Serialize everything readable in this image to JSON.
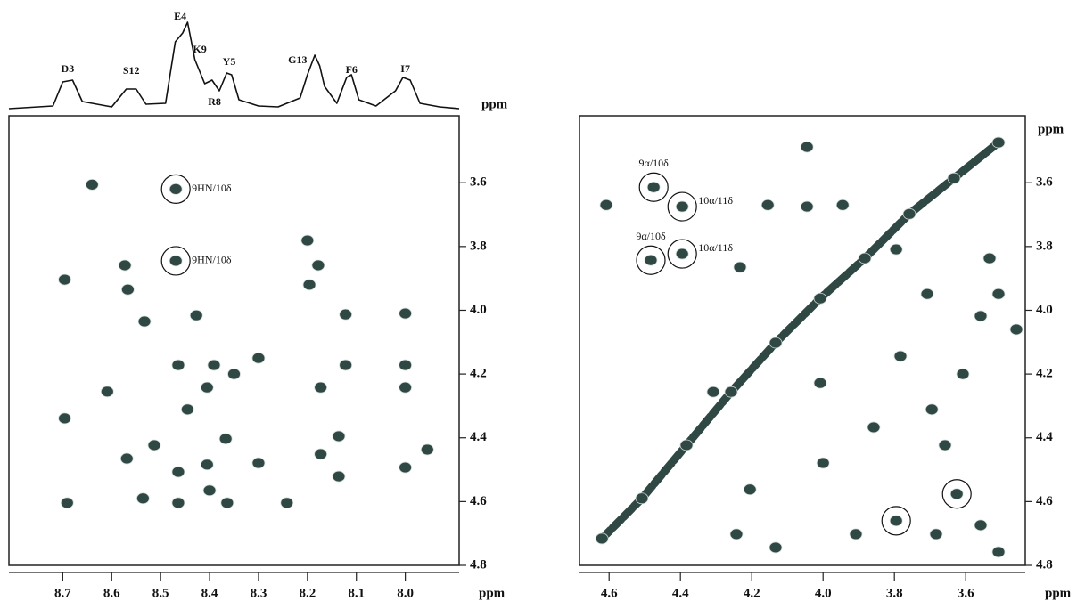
{
  "chart_data": [
    {
      "type": "line",
      "xlabel": "ppm",
      "color": "#111111",
      "xlim": [
        8.81,
        7.89
      ],
      "ylim": [
        0,
        110
      ],
      "x": [
        8.81,
        8.72,
        8.7,
        8.68,
        8.66,
        8.6,
        8.57,
        8.55,
        8.53,
        8.49,
        8.47,
        8.455,
        8.445,
        8.43,
        8.41,
        8.395,
        8.38,
        8.365,
        8.355,
        8.34,
        8.3,
        8.26,
        8.215,
        8.2,
        8.185,
        8.175,
        8.165,
        8.14,
        8.12,
        8.11,
        8.095,
        8.06,
        8.02,
        8.005,
        7.99,
        7.97,
        7.93,
        7.89
      ],
      "y": [
        0,
        3,
        30,
        32,
        8,
        2,
        22,
        22,
        5,
        6,
        75,
        85,
        97,
        55,
        28,
        32,
        20,
        40,
        38,
        10,
        3,
        2,
        12,
        38,
        60,
        48,
        25,
        6,
        35,
        38,
        10,
        3,
        20,
        35,
        32,
        6,
        2,
        0
      ],
      "annotations": [
        {
          "text": "D3",
          "x": 8.69,
          "y": 44
        },
        {
          "text": "S12",
          "x": 8.56,
          "y": 42
        },
        {
          "text": "E4",
          "x": 8.46,
          "y": 103
        },
        {
          "text": "K9",
          "x": 8.42,
          "y": 66
        },
        {
          "text": "R8",
          "x": 8.39,
          "y": 7
        },
        {
          "text": "Y5",
          "x": 8.36,
          "y": 52
        },
        {
          "text": "G13",
          "x": 8.22,
          "y": 54
        },
        {
          "text": "F6",
          "x": 8.11,
          "y": 43
        },
        {
          "text": "I7",
          "x": 8.0,
          "y": 44
        }
      ]
    },
    {
      "type": "scatter",
      "xlabel": "ppm",
      "color": "#2f4843",
      "xlim": [
        8.81,
        7.89
      ],
      "ylim": [
        4.8,
        3.39
      ],
      "xticks": [
        8.7,
        8.6,
        8.5,
        8.4,
        8.3,
        8.2,
        8.1,
        {
          "value": 8.0,
          "label": "8.0"
        }
      ],
      "yticks": [
        3.6,
        3.8,
        {
          "value": 4.0,
          "label": "4.0"
        },
        4.2,
        4.4,
        4.6,
        4.8
      ],
      "x": [
        8.469,
        8.469,
        8.64,
        8.573,
        8.567,
        8.696,
        8.2,
        8.178,
        8.196,
        8.533,
        8.427,
        8.122,
        8.0,
        8.464,
        8.391,
        8.3,
        8.35,
        8.405,
        8.122,
        8.0,
        8.0,
        8.173,
        8.609,
        8.696,
        8.445,
        8.367,
        8.136,
        8.569,
        8.513,
        8.405,
        8.3,
        8.464,
        8.173,
        8.136,
        8.0,
        8.4,
        8.364,
        8.464,
        8.536,
        8.691,
        8.242,
        7.955
      ],
      "y": [
        3.62,
        3.845,
        3.606,
        3.859,
        3.935,
        3.904,
        3.781,
        3.859,
        3.92,
        4.035,
        4.016,
        4.013,
        4.01,
        4.172,
        4.172,
        4.15,
        4.2,
        4.242,
        4.172,
        4.172,
        4.242,
        4.242,
        4.255,
        4.339,
        4.311,
        4.403,
        4.395,
        4.465,
        4.423,
        4.484,
        4.479,
        4.507,
        4.451,
        4.521,
        4.493,
        4.565,
        4.604,
        4.604,
        4.59,
        4.604,
        4.604,
        4.437
      ],
      "annotations": [
        {
          "text": "9HN/10δ",
          "x": 8.469,
          "y": 3.62
        },
        {
          "text": "9HN/10δ",
          "x": 8.469,
          "y": 3.845
        }
      ]
    },
    {
      "type": "scatter",
      "xlabel": "ppm",
      "ylabel": "ppm",
      "color": "#2f4843",
      "xlim": [
        4.683,
        3.433
      ],
      "ylim": [
        4.8,
        3.39
      ],
      "xticks": [
        4.6,
        4.4,
        4.2,
        {
          "value": 4.0,
          "label": "4.0"
        },
        3.8,
        3.6
      ],
      "yticks": [
        3.6,
        3.8,
        {
          "value": 4.0,
          "label": "4.0"
        },
        4.2,
        4.4,
        4.6,
        4.8
      ],
      "x": [
        4.475,
        4.395,
        4.483,
        4.395,
        3.795,
        3.625,
        4.045,
        4.155,
        4.045,
        3.945,
        4.233,
        4.308,
        4.0,
        4.205,
        4.243,
        3.695,
        3.558,
        3.508,
        3.708,
        3.783,
        3.608,
        3.908,
        3.683,
        3.558,
        4.008,
        3.458,
        3.533,
        3.795,
        4.608,
        3.508,
        3.858,
        3.658,
        4.133
      ],
      "y": [
        3.614,
        3.675,
        3.843,
        3.823,
        4.66,
        4.576,
        3.488,
        3.67,
        3.675,
        3.67,
        3.865,
        4.256,
        4.479,
        4.562,
        4.702,
        4.311,
        4.018,
        3.949,
        3.949,
        4.144,
        4.2,
        4.702,
        4.702,
        4.674,
        4.228,
        4.06,
        3.837,
        3.809,
        3.67,
        4.758,
        4.367,
        4.423,
        4.744
      ],
      "diagonal": {
        "x": [
          4.62,
          4.508,
          4.383,
          4.258,
          4.133,
          4.008,
          3.883,
          3.758,
          3.633,
          3.508
        ],
        "y": [
          4.716,
          4.59,
          4.423,
          4.256,
          4.102,
          3.963,
          3.837,
          3.698,
          3.586,
          3.474
        ]
      },
      "annotations": [
        {
          "text": "9α/10δ",
          "x": 4.475,
          "y": 3.614
        },
        {
          "text": "10α/11δ",
          "x": 4.395,
          "y": 3.675
        },
        {
          "text": "9α/10δ",
          "x": 4.483,
          "y": 3.843
        },
        {
          "text": "10α/11δ",
          "x": 4.395,
          "y": 3.823
        },
        {
          "x": 3.795,
          "y": 4.66
        },
        {
          "x": 3.625,
          "y": 4.576
        }
      ]
    }
  ]
}
